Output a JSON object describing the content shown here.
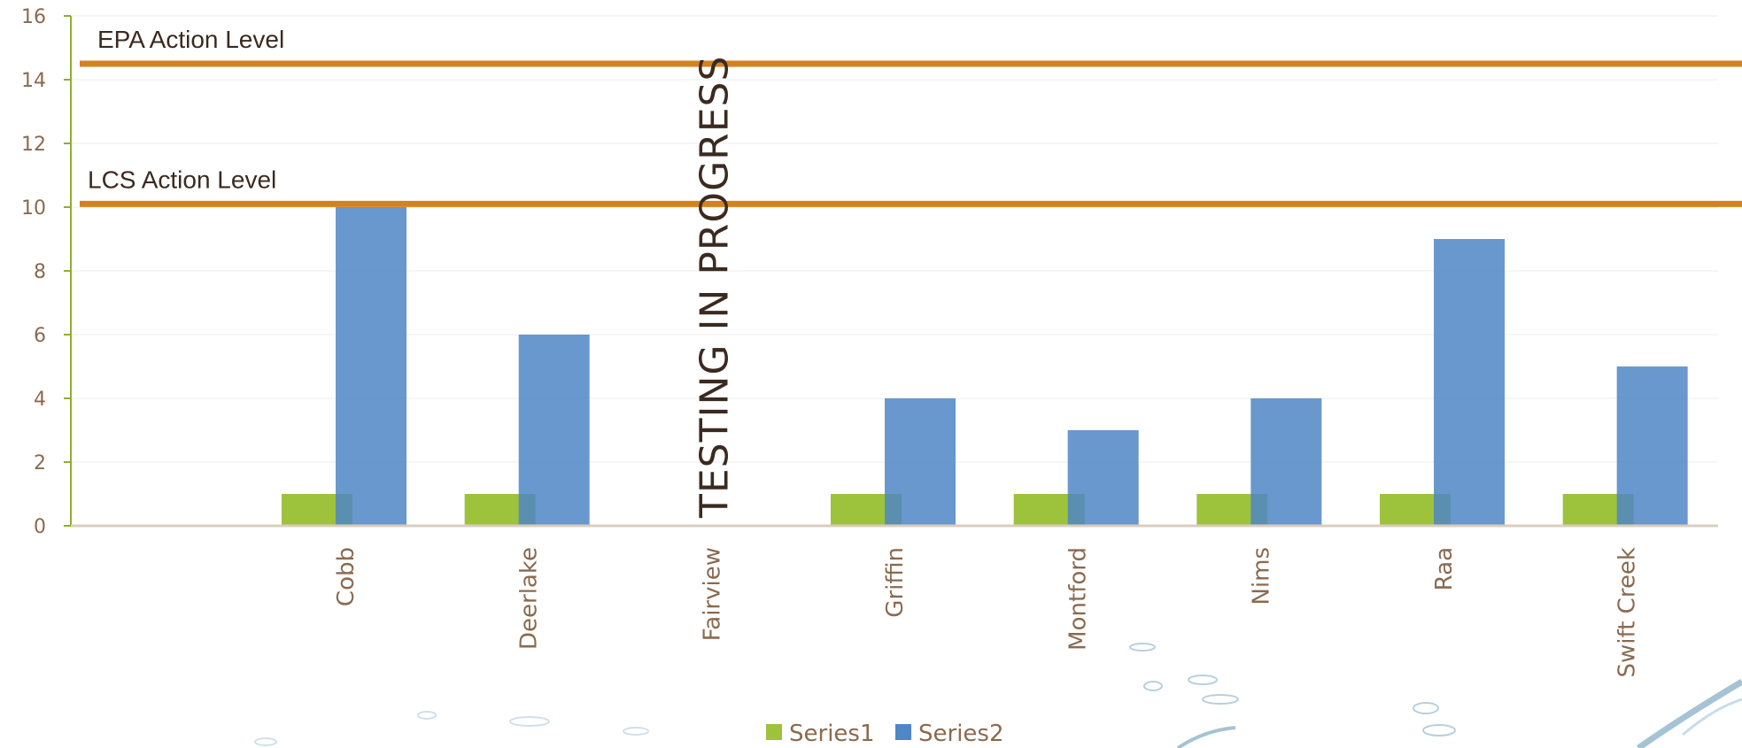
{
  "chart_data": {
    "type": "bar",
    "categories": [
      "",
      "Cobb",
      "Deerlake",
      "Fairview",
      "Griffin",
      "Montford",
      "Nims",
      "Raa",
      "Swift Creek"
    ],
    "series": [
      {
        "name": "Series1",
        "color": "#9dc23b",
        "values": [
          null,
          1,
          1,
          null,
          1,
          1,
          1,
          1,
          1
        ]
      },
      {
        "name": "Series2",
        "color": "#4f86c6",
        "values": [
          null,
          10,
          6,
          null,
          4,
          3,
          4,
          9,
          5
        ]
      }
    ],
    "ylim": [
      0,
      16
    ],
    "yticks": [
      0,
      2,
      4,
      6,
      8,
      10,
      12,
      14,
      16
    ],
    "grid": true,
    "legend": "bottom-center",
    "reference_lines": [
      {
        "label": "EPA Action  Level",
        "value": 14.5,
        "color": "#d4831c"
      },
      {
        "label": "LCS Action  Level",
        "value": 10.1,
        "color": "#d4831c"
      }
    ],
    "annotation": {
      "text": "TESTING IN PROGRESS",
      "category": "Fairview"
    }
  }
}
